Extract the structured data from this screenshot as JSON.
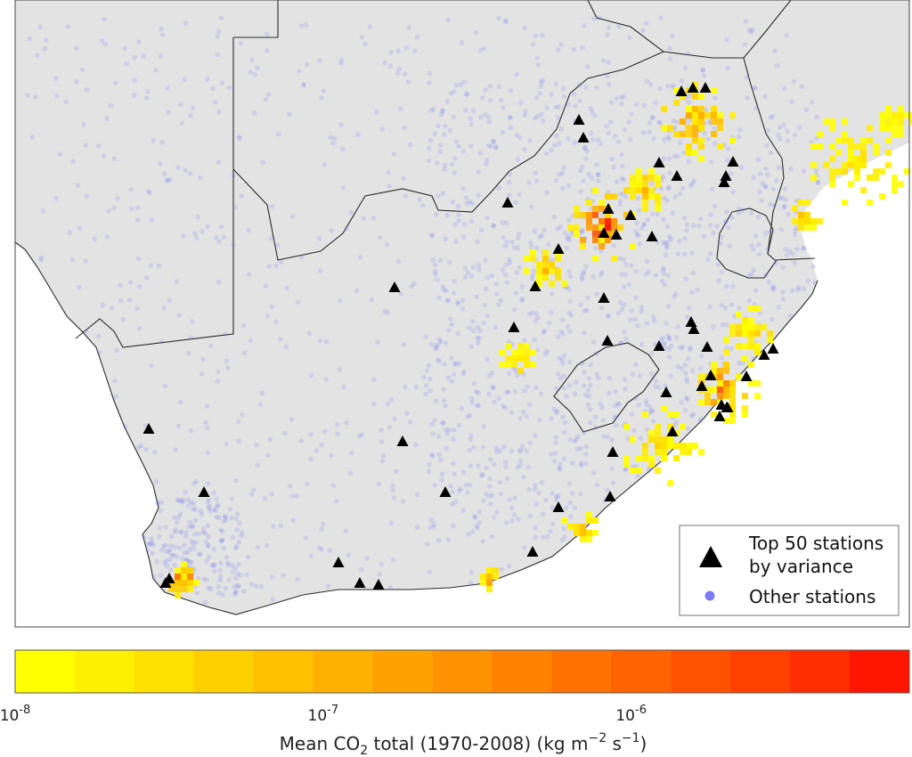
{
  "map": {
    "land_color": "#e3e3e3",
    "border_color": "#2a2a2a",
    "station_color": "#6f6ff0",
    "top_marker_color": "#000000"
  },
  "legend": {
    "top_label_line1": "Top 50 stations",
    "top_label_line2": "by variance",
    "other_label": "Other stations"
  },
  "colorbar": {
    "scale": "log",
    "min": 1e-08,
    "max": 8e-06,
    "colors": [
      "#ffff00",
      "#ffef00",
      "#ffe000",
      "#ffd000",
      "#ffc000",
      "#ffb100",
      "#ffa100",
      "#ff9200",
      "#ff8200",
      "#ff7200",
      "#ff6200",
      "#ff5200",
      "#ff4000",
      "#ff2d00",
      "#ff1500"
    ],
    "ticks": [
      {
        "value": 1e-08,
        "base": "10",
        "exp": "-8"
      },
      {
        "value": 1e-07,
        "base": "10",
        "exp": "-7"
      },
      {
        "value": 1e-06,
        "base": "10",
        "exp": "-6"
      }
    ],
    "label_pre": "Mean CO",
    "label_sub": "2",
    "label_mid": " total (1970-2008) (kg m",
    "label_sup1": "−2",
    "label_gap": " s",
    "label_sup2": "−1",
    "label_end": ")"
  }
}
